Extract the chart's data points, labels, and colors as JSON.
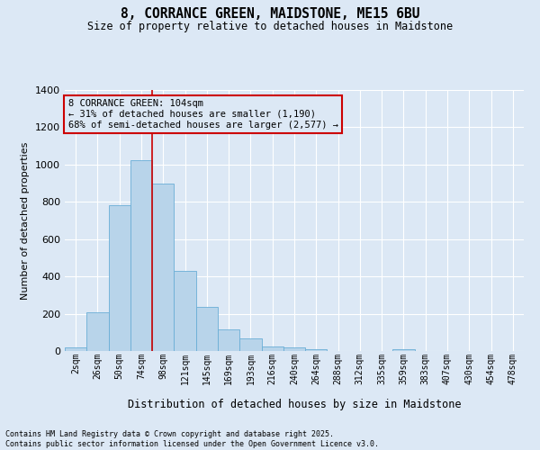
{
  "title": "8, CORRANCE GREEN, MAIDSTONE, ME15 6BU",
  "subtitle": "Size of property relative to detached houses in Maidstone",
  "xlabel": "Distribution of detached houses by size in Maidstone",
  "ylabel": "Number of detached properties",
  "bar_color": "#b8d4ea",
  "bar_edge_color": "#6aaed6",
  "background_color": "#dce8f5",
  "grid_color": "#ffffff",
  "categories": [
    "2sqm",
    "26sqm",
    "50sqm",
    "74sqm",
    "98sqm",
    "121sqm",
    "145sqm",
    "169sqm",
    "193sqm",
    "216sqm",
    "240sqm",
    "264sqm",
    "288sqm",
    "312sqm",
    "335sqm",
    "359sqm",
    "383sqm",
    "407sqm",
    "430sqm",
    "454sqm",
    "478sqm"
  ],
  "values": [
    20,
    210,
    780,
    1025,
    900,
    430,
    235,
    115,
    70,
    25,
    20,
    10,
    0,
    0,
    0,
    10,
    0,
    0,
    0,
    0,
    0
  ],
  "ylim": [
    0,
    1400
  ],
  "yticks": [
    0,
    200,
    400,
    600,
    800,
    1000,
    1200,
    1400
  ],
  "vline_index": 4,
  "vline_color": "#cc0000",
  "annotation_text": "8 CORRANCE GREEN: 104sqm\n← 31% of detached houses are smaller (1,190)\n68% of semi-detached houses are larger (2,577) →",
  "annotation_box_color": "#cc0000",
  "footnote": "Contains HM Land Registry data © Crown copyright and database right 2025.\nContains public sector information licensed under the Open Government Licence v3.0.",
  "figsize": [
    6.0,
    5.0
  ],
  "dpi": 100
}
